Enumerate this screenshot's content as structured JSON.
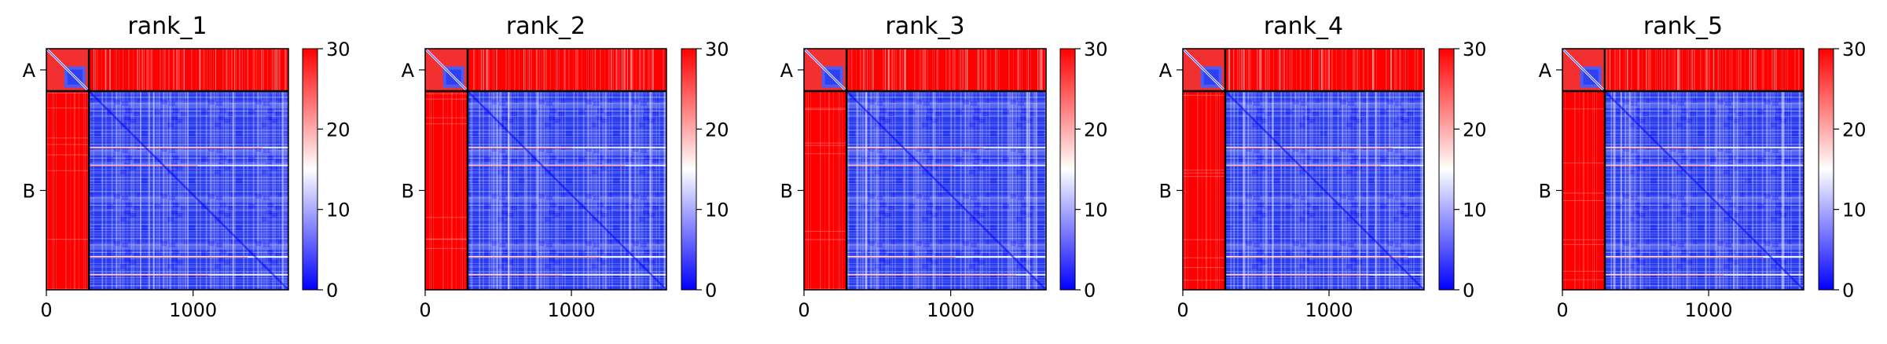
{
  "chart_data": [
    {
      "type": "heatmap",
      "title": "rank_1",
      "x_ticks": [
        0,
        1000
      ],
      "xlim": [
        0,
        1650
      ],
      "chain_labels": [
        "A",
        "B"
      ],
      "chain_boundary": 290,
      "colorbar": {
        "ticks": [
          0,
          10,
          20,
          30
        ],
        "range": [
          0,
          30
        ],
        "colormap": "bwr"
      },
      "grid": false
    },
    {
      "type": "heatmap",
      "title": "rank_2",
      "x_ticks": [
        0,
        1000
      ],
      "xlim": [
        0,
        1650
      ],
      "chain_labels": [
        "A",
        "B"
      ],
      "chain_boundary": 290,
      "colorbar": {
        "ticks": [
          0,
          10,
          20,
          30
        ],
        "range": [
          0,
          30
        ],
        "colormap": "bwr"
      },
      "grid": false
    },
    {
      "type": "heatmap",
      "title": "rank_3",
      "x_ticks": [
        0,
        1000
      ],
      "xlim": [
        0,
        1650
      ],
      "chain_labels": [
        "A",
        "B"
      ],
      "chain_boundary": 290,
      "colorbar": {
        "ticks": [
          0,
          10,
          20,
          30
        ],
        "range": [
          0,
          30
        ],
        "colormap": "bwr"
      },
      "grid": false
    },
    {
      "type": "heatmap",
      "title": "rank_4",
      "x_ticks": [
        0,
        1000
      ],
      "xlim": [
        0,
        1650
      ],
      "chain_labels": [
        "A",
        "B"
      ],
      "chain_boundary": 290,
      "colorbar": {
        "ticks": [
          0,
          10,
          20,
          30
        ],
        "range": [
          0,
          30
        ],
        "colormap": "bwr"
      },
      "grid": false
    },
    {
      "type": "heatmap",
      "title": "rank_5",
      "x_ticks": [
        0,
        1000
      ],
      "xlim": [
        0,
        1650
      ],
      "chain_labels": [
        "A",
        "B"
      ],
      "chain_boundary": 290,
      "colorbar": {
        "ticks": [
          0,
          10,
          20,
          30
        ],
        "range": [
          0,
          30
        ],
        "colormap": "bwr"
      },
      "grid": false
    }
  ],
  "colors": {
    "high": "#ff0000",
    "mid": "#ffffff",
    "low": "#0000ff",
    "plddt_blue": "#2a3cf0",
    "boundary_line": "#000000"
  }
}
